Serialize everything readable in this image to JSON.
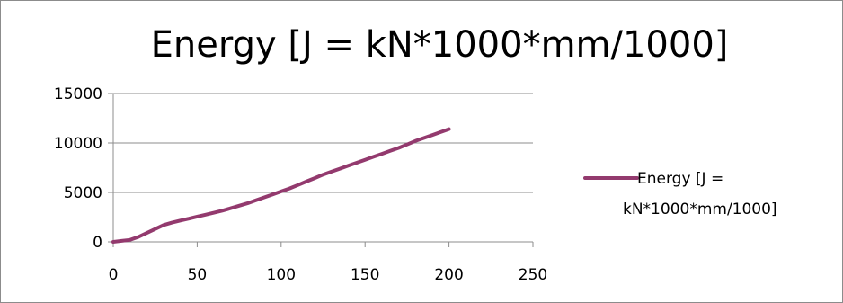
{
  "chart_data": {
    "type": "line",
    "title": "Energy [J = kN*1000*mm/1000]",
    "xlabel": "",
    "ylabel": "",
    "xlim": [
      0,
      250
    ],
    "ylim": [
      0,
      15000
    ],
    "x_ticks": [
      0,
      50,
      100,
      150,
      200,
      250
    ],
    "y_ticks": [
      0,
      5000,
      10000,
      15000
    ],
    "grid": "horizontal",
    "legend": "right",
    "series": [
      {
        "name": "Energy [J = kN*1000*mm/1000]",
        "legend_lines": [
          "Energy [J =",
          "kN*1000*mm/1000]"
        ],
        "color": "#933a6e",
        "x": [
          0,
          5,
          10,
          15,
          20,
          25,
          30,
          35,
          40,
          45,
          50,
          55,
          60,
          65,
          70,
          75,
          80,
          85,
          90,
          95,
          100,
          105,
          110,
          115,
          120,
          125,
          130,
          135,
          140,
          145,
          150,
          155,
          160,
          165,
          170,
          175,
          180,
          185,
          190,
          195,
          200
        ],
        "y": [
          0,
          100,
          200,
          500,
          900,
          1300,
          1700,
          1950,
          2150,
          2350,
          2550,
          2750,
          2950,
          3150,
          3400,
          3650,
          3900,
          4200,
          4500,
          4800,
          5100,
          5400,
          5750,
          6100,
          6450,
          6800,
          7100,
          7400,
          7700,
          8000,
          8300,
          8600,
          8900,
          9200,
          9500,
          9850,
          10200,
          10500,
          10800,
          11100,
          11400
        ]
      }
    ]
  }
}
